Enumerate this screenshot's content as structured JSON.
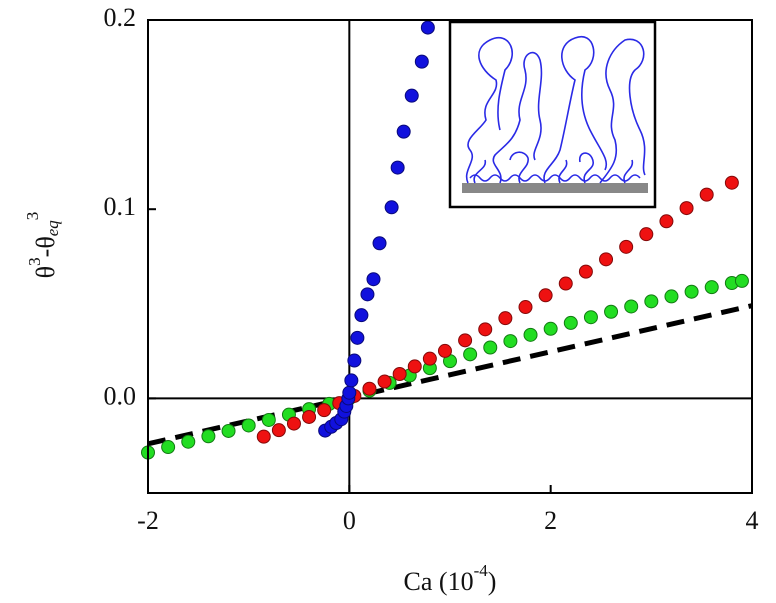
{
  "chart_data": {
    "type": "scatter",
    "xlabel": [
      "Ca (10",
      "-4",
      ")"
    ],
    "ylabel": [
      "θ",
      "3",
      "-θ",
      "eq",
      "3"
    ],
    "xlim": [
      -2,
      4
    ],
    "ylim": [
      -0.05,
      0.2
    ],
    "xticks": [
      -2,
      0,
      2,
      4
    ],
    "yticks": [
      {
        "value": 0,
        "label": "0.0"
      },
      0.1,
      0.2
    ],
    "series": [
      {
        "color": "#000000",
        "dashed": true,
        "x": [
          -2,
          4
        ],
        "values": [
          -0.024,
          0.049
        ]
      },
      {
        "color": "#22dd22",
        "x": [
          -2,
          -1.8,
          -1.6,
          -1.4,
          -1.2,
          -1,
          -0.8,
          -0.6,
          -0.4,
          -0.2,
          0,
          0.2,
          0.4,
          0.6,
          0.8,
          1,
          1.2,
          1.4,
          1.6,
          1.8,
          2,
          2.2,
          2.4,
          2.6,
          2.8,
          3,
          3.2,
          3.4,
          3.6,
          3.8,
          3.9
        ],
        "values": [
          -0.0286,
          -0.0257,
          -0.0229,
          -0.02,
          -0.0172,
          -0.0143,
          -0.0114,
          -0.0086,
          -0.0057,
          -0.0029,
          0,
          0.0041,
          0.0082,
          0.0121,
          0.016,
          0.0197,
          0.0233,
          0.0269,
          0.0303,
          0.0336,
          0.0368,
          0.0399,
          0.0429,
          0.0458,
          0.0486,
          0.0513,
          0.0539,
          0.0564,
          0.0588,
          0.061,
          0.0621
        ]
      },
      {
        "color": "#ee1111",
        "x": [
          -0.85,
          -0.7,
          -0.55,
          -0.4,
          -0.25,
          -0.1,
          0.05,
          0.2,
          0.35,
          0.5,
          0.65,
          0.8,
          0.95,
          1.15,
          1.35,
          1.55,
          1.75,
          1.95,
          2.15,
          2.35,
          2.55,
          2.75,
          2.95,
          3.15,
          3.35,
          3.55,
          3.8
        ],
        "values": [
          -0.0202,
          -0.0168,
          -0.0133,
          -0.0098,
          -0.0062,
          -0.0025,
          0.0013,
          0.0051,
          0.0089,
          0.0129,
          0.0169,
          0.021,
          0.0251,
          0.0307,
          0.0365,
          0.0424,
          0.0483,
          0.0545,
          0.0607,
          0.067,
          0.0735,
          0.0801,
          0.0868,
          0.0936,
          0.1006,
          0.1077,
          0.114
        ]
      },
      {
        "color": "#1111dd",
        "x": [
          -0.24,
          -0.18,
          -0.13,
          -0.08,
          -0.05,
          -0.03,
          -0.01,
          0,
          0.02,
          0.05,
          0.08,
          0.12,
          0.18,
          0.24,
          0.3,
          0.42,
          0.48,
          0.54,
          0.62,
          0.72,
          0.78
        ],
        "values": [
          -0.017,
          -0.015,
          -0.013,
          -0.011,
          -0.007,
          -0.004,
          0,
          0.003,
          0.0095,
          0.02,
          0.032,
          0.044,
          0.055,
          0.063,
          0.082,
          0.101,
          0.122,
          0.141,
          0.16,
          0.178,
          0.196
        ]
      }
    ]
  }
}
